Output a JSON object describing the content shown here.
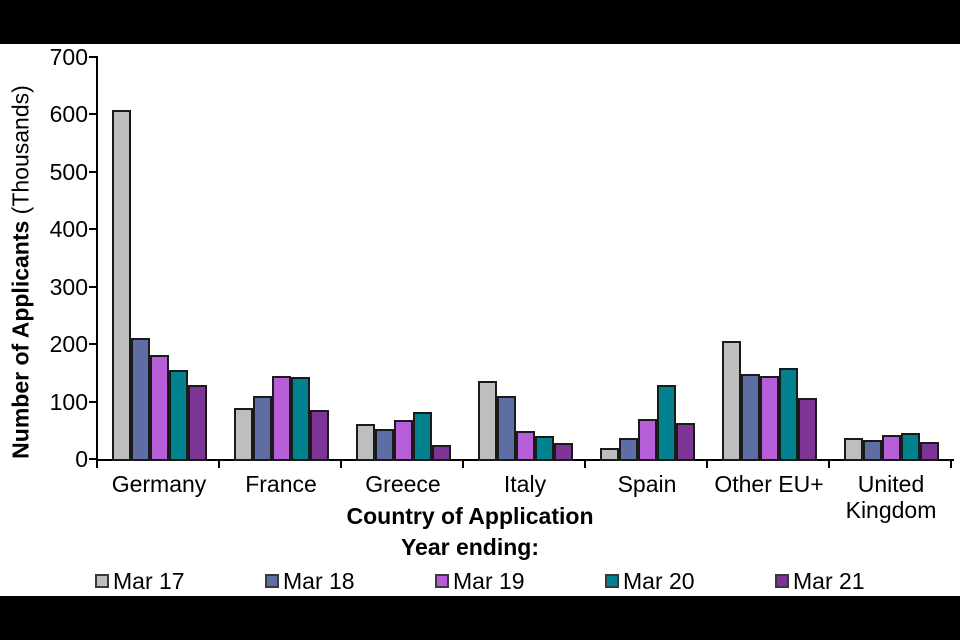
{
  "page": {
    "background": "#FFFFFF",
    "band_color": "#000000"
  },
  "chart_data": {
    "type": "bar",
    "title": "",
    "xlabel": "Country of Application",
    "ylabel": "Number of Applicants (Thousands)",
    "ylabel_bold": "Number of Applicants",
    "ylabel_normal": " (Thousands)",
    "legend_title": "Year ending:",
    "legend_position": "bottom",
    "grid": false,
    "ylim": [
      0,
      700
    ],
    "yticks": [
      0,
      100,
      200,
      300,
      400,
      500,
      600,
      700
    ],
    "bar_border_color": "#1a1a1a",
    "categories": [
      "Germany",
      "France",
      "Greece",
      "Italy",
      "Spain",
      "Other EU+",
      "United Kingdom"
    ],
    "series": [
      {
        "name": "Mar 17",
        "color": "#BCBEC0",
        "values": [
          608,
          88,
          61,
          136,
          20,
          205,
          37
        ]
      },
      {
        "name": "Mar 18",
        "color": "#5E6DA4",
        "values": [
          210,
          110,
          53,
          110,
          37,
          148,
          33
        ]
      },
      {
        "name": "Mar 19",
        "color": "#B55ED8",
        "values": [
          181,
          145,
          68,
          49,
          70,
          145,
          41
        ]
      },
      {
        "name": "Mar 20",
        "color": "#00838F",
        "values": [
          155,
          143,
          81,
          40,
          128,
          158,
          46
        ]
      },
      {
        "name": "Mar 21",
        "color": "#7C3595",
        "values": [
          129,
          86,
          24,
          27,
          63,
          106,
          30
        ]
      }
    ]
  }
}
